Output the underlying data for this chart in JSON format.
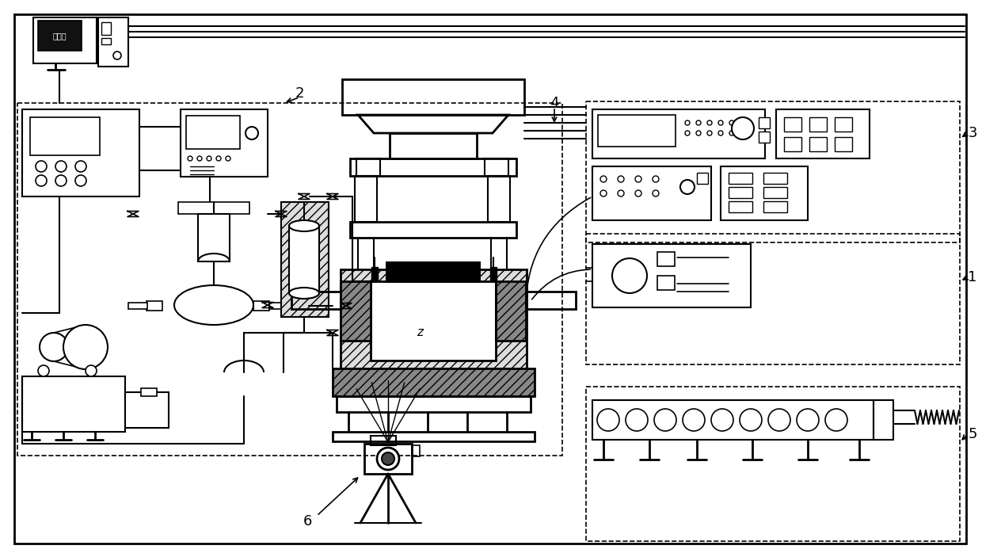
{
  "bg_color": "#ffffff",
  "lc": "#000000",
  "figsize": [
    12.4,
    7.03
  ],
  "dpi": 100,
  "labels": {
    "computer": "计算机",
    "z": "z",
    "1": "1",
    "2": "2",
    "3": "3",
    "4": "4",
    "5": "5",
    "6": "6"
  }
}
